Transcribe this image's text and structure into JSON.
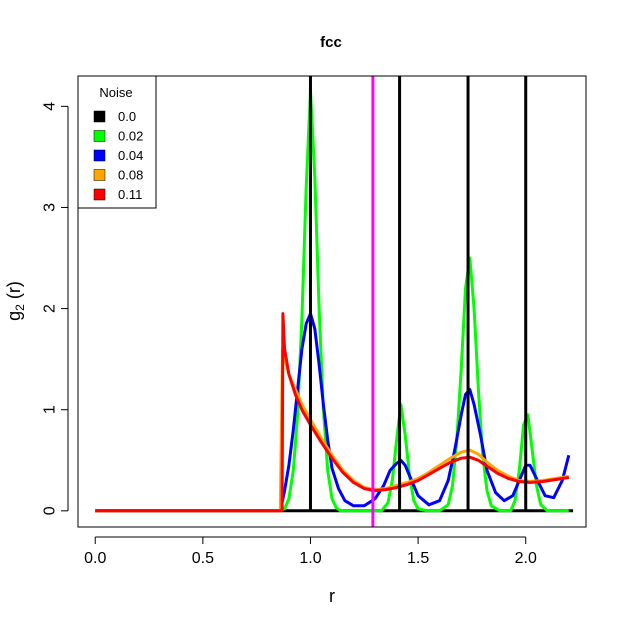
{
  "chart_data": {
    "type": "line",
    "title": "fcc",
    "xlabel": "r",
    "ylabel_main": "g",
    "ylabel_sub": "2",
    "ylabel_suffix": " (r)",
    "xlim": [
      -0.08,
      2.28
    ],
    "ylim": [
      -0.16,
      4.3
    ],
    "x_ticks": [
      0.0,
      0.5,
      1.0,
      1.5,
      2.0
    ],
    "x_tick_labels": [
      "0.0",
      "0.5",
      "1.0",
      "1.5",
      "2.0"
    ],
    "y_ticks": [
      0,
      1,
      2,
      3,
      4
    ],
    "y_tick_labels": [
      "0",
      "1",
      "2",
      "3",
      "4"
    ],
    "grid": false,
    "legend": {
      "title": "Noise",
      "position": "top-left",
      "entries": [
        {
          "label": "0.0",
          "color": "#000000"
        },
        {
          "label": "0.02",
          "color": "#00ff00"
        },
        {
          "label": "0.04",
          "color": "#0000ff"
        },
        {
          "label": "0.08",
          "color": "#ffa500"
        },
        {
          "label": "0.11",
          "color": "#ff0000"
        }
      ]
    },
    "reference_vline": {
      "x": 1.29,
      "color": "#ff00ff"
    },
    "delta_peaks": {
      "x": [
        1.0,
        1.414,
        1.732,
        2.0
      ],
      "color": "#000000"
    },
    "series": [
      {
        "color": "#000000",
        "x": [
          0.0,
          2.22
        ],
        "y": [
          0,
          0
        ]
      },
      {
        "color": "#00ff00",
        "x": [
          0.0,
          0.86,
          0.88,
          0.9,
          0.92,
          0.94,
          0.96,
          0.98,
          1.0,
          1.02,
          1.04,
          1.06,
          1.08,
          1.1,
          1.12,
          1.14,
          1.16,
          1.2,
          1.28,
          1.33,
          1.36,
          1.38,
          1.4,
          1.42,
          1.44,
          1.46,
          1.48,
          1.5,
          1.54,
          1.6,
          1.64,
          1.66,
          1.68,
          1.7,
          1.72,
          1.74,
          1.76,
          1.78,
          1.8,
          1.82,
          1.84,
          1.88,
          1.93,
          1.95,
          1.97,
          1.99,
          2.01,
          2.03,
          2.05,
          2.07,
          2.1,
          2.15,
          2.2
        ],
        "y": [
          0,
          0,
          0.02,
          0.12,
          0.4,
          0.95,
          1.9,
          3.2,
          4.15,
          3.3,
          2.0,
          1.0,
          0.4,
          0.12,
          0.03,
          0.0,
          0.0,
          0.0,
          0.0,
          0.0,
          0.08,
          0.3,
          0.7,
          1.05,
          0.75,
          0.35,
          0.1,
          0.02,
          0.0,
          0.0,
          0.06,
          0.25,
          0.7,
          1.4,
          2.2,
          2.5,
          2.0,
          1.2,
          0.55,
          0.2,
          0.05,
          0.0,
          0.0,
          0.1,
          0.4,
          0.85,
          0.95,
          0.6,
          0.25,
          0.06,
          0.0,
          0.0,
          0.0
        ]
      },
      {
        "color": "#0000ff",
        "x": [
          0.0,
          0.86,
          0.88,
          0.9,
          0.92,
          0.94,
          0.96,
          0.98,
          1.0,
          1.02,
          1.04,
          1.06,
          1.08,
          1.1,
          1.13,
          1.16,
          1.2,
          1.25,
          1.3,
          1.34,
          1.37,
          1.4,
          1.42,
          1.44,
          1.47,
          1.5,
          1.55,
          1.6,
          1.64,
          1.67,
          1.7,
          1.72,
          1.74,
          1.76,
          1.79,
          1.82,
          1.86,
          1.9,
          1.94,
          1.97,
          2.0,
          2.02,
          2.05,
          2.09,
          2.13,
          2.17,
          2.2
        ],
        "y": [
          0,
          0,
          0.2,
          0.45,
          0.8,
          1.2,
          1.6,
          1.85,
          1.95,
          1.8,
          1.45,
          1.05,
          0.7,
          0.42,
          0.22,
          0.1,
          0.05,
          0.05,
          0.12,
          0.25,
          0.4,
          0.47,
          0.5,
          0.45,
          0.3,
          0.15,
          0.06,
          0.1,
          0.3,
          0.6,
          0.95,
          1.15,
          1.2,
          1.05,
          0.75,
          0.4,
          0.18,
          0.1,
          0.15,
          0.3,
          0.45,
          0.45,
          0.32,
          0.15,
          0.13,
          0.3,
          0.55
        ]
      },
      {
        "color": "#ffa500",
        "x": [
          0.0,
          0.86,
          0.87,
          0.88,
          0.9,
          0.93,
          0.96,
          1.0,
          1.05,
          1.1,
          1.15,
          1.2,
          1.25,
          1.3,
          1.35,
          1.4,
          1.45,
          1.5,
          1.55,
          1.6,
          1.65,
          1.7,
          1.74,
          1.78,
          1.82,
          1.87,
          1.92,
          1.97,
          2.02,
          2.08,
          2.14,
          2.2
        ],
        "y": [
          0,
          0,
          1.6,
          1.5,
          1.35,
          1.2,
          1.05,
          0.9,
          0.72,
          0.55,
          0.4,
          0.3,
          0.23,
          0.21,
          0.22,
          0.25,
          0.28,
          0.32,
          0.38,
          0.45,
          0.52,
          0.58,
          0.6,
          0.56,
          0.48,
          0.4,
          0.34,
          0.3,
          0.29,
          0.3,
          0.32,
          0.34
        ]
      },
      {
        "color": "#ff0000",
        "x": [
          0.0,
          0.868,
          0.872,
          0.88,
          0.9,
          0.93,
          0.96,
          1.0,
          1.05,
          1.1,
          1.15,
          1.2,
          1.25,
          1.3,
          1.35,
          1.4,
          1.45,
          1.5,
          1.55,
          1.6,
          1.65,
          1.7,
          1.74,
          1.78,
          1.82,
          1.87,
          1.92,
          1.97,
          2.02,
          2.08,
          2.14,
          2.2
        ],
        "y": [
          0,
          0,
          1.95,
          1.6,
          1.35,
          1.15,
          1.0,
          0.85,
          0.68,
          0.52,
          0.38,
          0.28,
          0.22,
          0.2,
          0.21,
          0.23,
          0.26,
          0.3,
          0.36,
          0.42,
          0.48,
          0.52,
          0.53,
          0.5,
          0.44,
          0.37,
          0.32,
          0.29,
          0.28,
          0.29,
          0.31,
          0.33
        ]
      }
    ]
  }
}
